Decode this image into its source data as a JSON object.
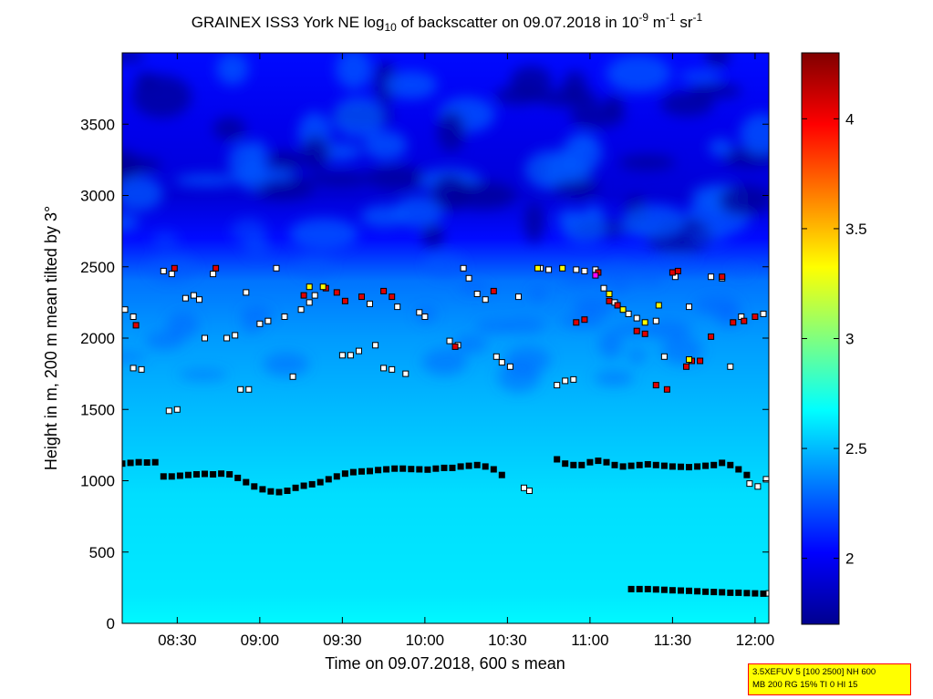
{
  "chart_data": {
    "type": "heatmap",
    "title": {
      "prefix": "GRAINEX ISS3 York NE log",
      "sub": "10",
      "middle": " of backscatter on 09.07.2018 in 10",
      "sup1": "-9",
      "m_unit": " m",
      "sup2": "-1",
      "sr_unit": " sr",
      "sup3": "-1"
    },
    "xlabel": "Time on 09.07.2018, 600 s mean",
    "ylabel": "Height in m, 200 m mean tilted by 3°",
    "xlim": [
      "08:10",
      "12:05"
    ],
    "ylim": [
      0,
      4000
    ],
    "xticks": [
      "08:30",
      "09:00",
      "09:30",
      "10:00",
      "10:30",
      "11:00",
      "11:30",
      "12:00"
    ],
    "yticks": [
      0,
      500,
      1000,
      1500,
      2000,
      2500,
      3000,
      3500
    ],
    "colorbar": {
      "range": [
        1.7,
        4.3
      ],
      "ticks": [
        2,
        2.5,
        3,
        3.5,
        4
      ],
      "colormap": "jet"
    },
    "backscatter_by_height": [
      {
        "height": 0,
        "value": 2.66
      },
      {
        "height": 200,
        "value": 2.62
      },
      {
        "height": 900,
        "value": 2.59
      },
      {
        "height": 1150,
        "value": 2.55
      },
      {
        "height": 1500,
        "value": 2.5
      },
      {
        "height": 2000,
        "value": 2.42
      },
      {
        "height": 2400,
        "value": 2.32
      },
      {
        "height": 2700,
        "value": 2.05
      },
      {
        "height": 3000,
        "value": 1.92
      },
      {
        "height": 3500,
        "value": 1.98
      },
      {
        "height": 4000,
        "value": 2.05
      }
    ],
    "series": [
      {
        "marker": "black-filled",
        "points": [
          [
            "08:10",
            1120
          ],
          [
            "08:13",
            1125
          ],
          [
            "08:16",
            1130
          ],
          [
            "08:19",
            1128
          ],
          [
            "08:22",
            1130
          ],
          [
            "08:25",
            1030
          ],
          [
            "08:28",
            1030
          ],
          [
            "08:31",
            1035
          ],
          [
            "08:34",
            1040
          ],
          [
            "08:37",
            1045
          ],
          [
            "08:40",
            1048
          ],
          [
            "08:43",
            1045
          ],
          [
            "08:46",
            1050
          ],
          [
            "08:49",
            1045
          ],
          [
            "08:52",
            1020
          ],
          [
            "08:55",
            990
          ],
          [
            "08:58",
            960
          ],
          [
            "09:01",
            940
          ],
          [
            "09:04",
            925
          ],
          [
            "09:07",
            920
          ],
          [
            "09:10",
            930
          ],
          [
            "09:13",
            950
          ],
          [
            "09:16",
            965
          ],
          [
            "09:19",
            975
          ],
          [
            "09:22",
            990
          ],
          [
            "09:25",
            1010
          ],
          [
            "09:28",
            1030
          ],
          [
            "09:31",
            1050
          ],
          [
            "09:34",
            1060
          ],
          [
            "09:37",
            1065
          ],
          [
            "09:40",
            1068
          ],
          [
            "09:43",
            1075
          ],
          [
            "09:46",
            1080
          ],
          [
            "09:49",
            1085
          ],
          [
            "09:52",
            1085
          ],
          [
            "09:55",
            1082
          ],
          [
            "09:58",
            1080
          ],
          [
            "10:01",
            1078
          ],
          [
            "10:04",
            1085
          ],
          [
            "10:07",
            1090
          ],
          [
            "10:10",
            1090
          ],
          [
            "10:13",
            1100
          ],
          [
            "10:16",
            1105
          ],
          [
            "10:19",
            1110
          ],
          [
            "10:22",
            1100
          ],
          [
            "10:25",
            1080
          ],
          [
            "10:28",
            1040
          ],
          [
            "10:48",
            1150
          ],
          [
            "10:51",
            1120
          ],
          [
            "10:54",
            1110
          ],
          [
            "10:57",
            1110
          ],
          [
            "11:00",
            1130
          ],
          [
            "11:03",
            1140
          ],
          [
            "11:06",
            1130
          ],
          [
            "11:09",
            1110
          ],
          [
            "11:12",
            1100
          ],
          [
            "11:15",
            1105
          ],
          [
            "11:18",
            1110
          ],
          [
            "11:21",
            1115
          ],
          [
            "11:24",
            1110
          ],
          [
            "11:27",
            1105
          ],
          [
            "11:30",
            1100
          ],
          [
            "11:33",
            1098
          ],
          [
            "11:36",
            1095
          ],
          [
            "11:39",
            1100
          ],
          [
            "11:42",
            1105
          ],
          [
            "11:45",
            1110
          ],
          [
            "11:48",
            1125
          ],
          [
            "11:51",
            1110
          ],
          [
            "11:54",
            1080
          ],
          [
            "11:57",
            1040
          ],
          [
            "11:15",
            240
          ],
          [
            "11:18",
            240
          ],
          [
            "11:21",
            240
          ],
          [
            "11:24",
            238
          ],
          [
            "11:27",
            235
          ],
          [
            "11:30",
            232
          ],
          [
            "11:33",
            230
          ],
          [
            "11:36",
            228
          ],
          [
            "11:39",
            225
          ],
          [
            "11:42",
            222
          ],
          [
            "11:45",
            220
          ],
          [
            "11:48",
            218
          ],
          [
            "11:51",
            215
          ],
          [
            "11:54",
            215
          ],
          [
            "11:57",
            212
          ],
          [
            "12:00",
            210
          ],
          [
            "12:03",
            208
          ]
        ]
      },
      {
        "marker": "white",
        "points": [
          [
            "08:11",
            2200
          ],
          [
            "08:14",
            2150
          ],
          [
            "08:14",
            1790
          ],
          [
            "08:17",
            1780
          ],
          [
            "08:25",
            2470
          ],
          [
            "08:28",
            2450
          ],
          [
            "08:27",
            1490
          ],
          [
            "08:30",
            1500
          ],
          [
            "08:33",
            2280
          ],
          [
            "08:36",
            2300
          ],
          [
            "08:38",
            2270
          ],
          [
            "08:40",
            2000
          ],
          [
            "08:43",
            2450
          ],
          [
            "08:48",
            2000
          ],
          [
            "08:51",
            2020
          ],
          [
            "08:53",
            1640
          ],
          [
            "08:56",
            1640
          ],
          [
            "08:55",
            2320
          ],
          [
            "09:00",
            2100
          ],
          [
            "09:03",
            2120
          ],
          [
            "09:06",
            2490
          ],
          [
            "09:09",
            2150
          ],
          [
            "09:12",
            1730
          ],
          [
            "09:15",
            2200
          ],
          [
            "09:18",
            2250
          ],
          [
            "09:20",
            2300
          ],
          [
            "09:30",
            1880
          ],
          [
            "09:33",
            1880
          ],
          [
            "09:36",
            1910
          ],
          [
            "09:40",
            2240
          ],
          [
            "09:42",
            1950
          ],
          [
            "09:45",
            1790
          ],
          [
            "09:48",
            1780
          ],
          [
            "09:50",
            2220
          ],
          [
            "09:53",
            1750
          ],
          [
            "09:58",
            2180
          ],
          [
            "10:00",
            2150
          ],
          [
            "10:09",
            1980
          ],
          [
            "10:12",
            1950
          ],
          [
            "10:14",
            2490
          ],
          [
            "10:16",
            2420
          ],
          [
            "10:19",
            2310
          ],
          [
            "10:22",
            2270
          ],
          [
            "10:26",
            1870
          ],
          [
            "10:28",
            1830
          ],
          [
            "10:31",
            1800
          ],
          [
            "10:34",
            2290
          ],
          [
            "10:36",
            950
          ],
          [
            "10:38",
            930
          ],
          [
            "10:42",
            2490
          ],
          [
            "10:45",
            2480
          ],
          [
            "10:48",
            1670
          ],
          [
            "10:51",
            1700
          ],
          [
            "10:54",
            1710
          ],
          [
            "10:55",
            2480
          ],
          [
            "10:58",
            2470
          ],
          [
            "11:02",
            2480
          ],
          [
            "11:05",
            2350
          ],
          [
            "11:09",
            2250
          ],
          [
            "11:14",
            2170
          ],
          [
            "11:17",
            2140
          ],
          [
            "11:24",
            2120
          ],
          [
            "11:27",
            1870
          ],
          [
            "11:31",
            2430
          ],
          [
            "11:36",
            2220
          ],
          [
            "11:44",
            2430
          ],
          [
            "11:48",
            2420
          ],
          [
            "11:51",
            1800
          ],
          [
            "11:55",
            2150
          ],
          [
            "11:58",
            980
          ],
          [
            "12:01",
            960
          ],
          [
            "12:04",
            1010
          ],
          [
            "12:05",
            210
          ],
          [
            "12:03",
            2170
          ]
        ]
      },
      {
        "marker": "red",
        "points": [
          [
            "08:15",
            2090
          ],
          [
            "08:29",
            2490
          ],
          [
            "08:44",
            2490
          ],
          [
            "09:16",
            2300
          ],
          [
            "09:24",
            2350
          ],
          [
            "09:28",
            2320
          ],
          [
            "09:31",
            2260
          ],
          [
            "09:37",
            2290
          ],
          [
            "09:45",
            2330
          ],
          [
            "09:48",
            2290
          ],
          [
            "10:11",
            1940
          ],
          [
            "10:25",
            2330
          ],
          [
            "10:55",
            2110
          ],
          [
            "10:58",
            2130
          ],
          [
            "11:03",
            2460
          ],
          [
            "11:07",
            2260
          ],
          [
            "11:10",
            2230
          ],
          [
            "11:17",
            2050
          ],
          [
            "11:20",
            2030
          ],
          [
            "11:24",
            1670
          ],
          [
            "11:28",
            1640
          ],
          [
            "11:30",
            2460
          ],
          [
            "11:32",
            2470
          ],
          [
            "11:35",
            1800
          ],
          [
            "11:37",
            1840
          ],
          [
            "11:40",
            1840
          ],
          [
            "11:44",
            2010
          ],
          [
            "11:48",
            2430
          ],
          [
            "11:52",
            2110
          ],
          [
            "11:56",
            2120
          ],
          [
            "12:00",
            2150
          ]
        ]
      },
      {
        "marker": "yellow",
        "points": [
          [
            "09:18",
            2360
          ],
          [
            "09:23",
            2360
          ],
          [
            "10:41",
            2490
          ],
          [
            "10:50",
            2490
          ],
          [
            "11:07",
            2310
          ],
          [
            "11:12",
            2200
          ],
          [
            "11:20",
            2110
          ],
          [
            "11:25",
            2230
          ],
          [
            "11:36",
            1850
          ]
        ]
      },
      {
        "marker": "magenta",
        "points": [
          [
            "11:02",
            2440
          ]
        ]
      }
    ]
  },
  "info_box": {
    "line1": "3.5XEFUV 5 [100 2500] NH 600",
    "line2": "MB 200 RG 15% TI 0 HI 15"
  }
}
